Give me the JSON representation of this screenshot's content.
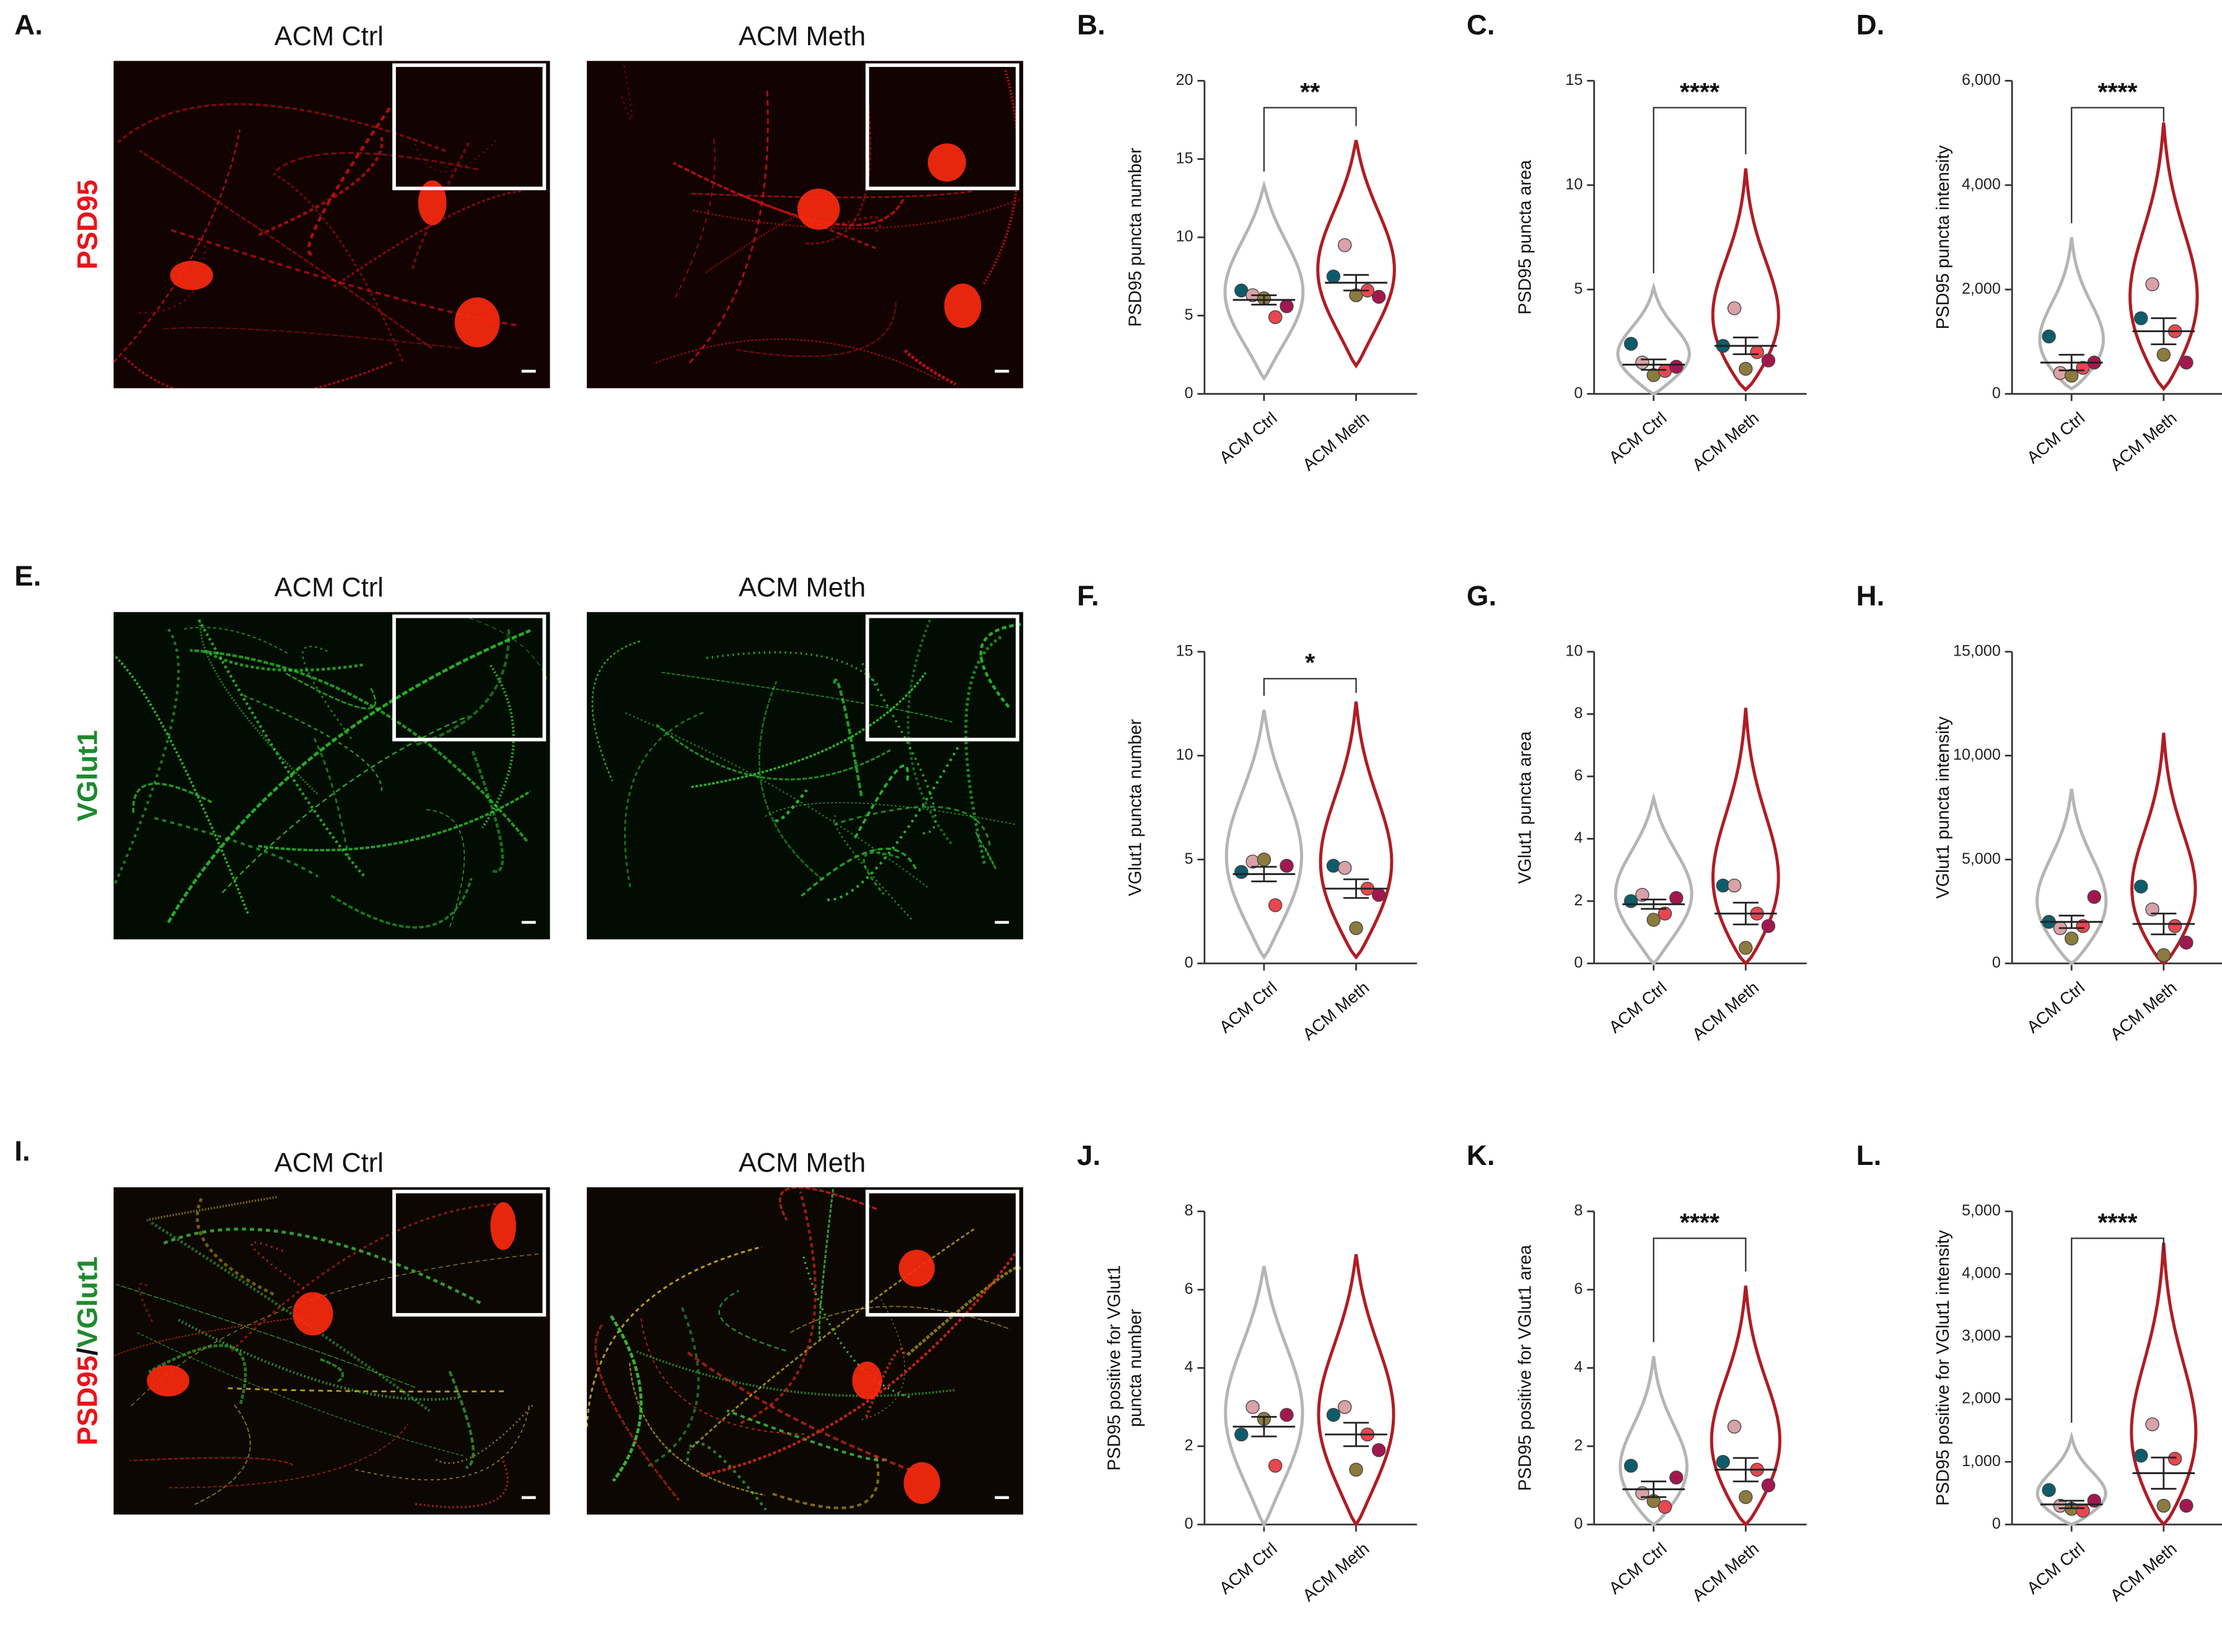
{
  "figure_panels": [
    {
      "letter": "A.",
      "stain": [
        "PSD95"
      ],
      "stain_colors": [
        "#e8141c"
      ],
      "channel": "red",
      "images": [
        "ACM Ctrl",
        "ACM Meth"
      ]
    },
    {
      "letter": "E.",
      "stain": [
        "VGlut1"
      ],
      "stain_colors": [
        "#1e8a2e"
      ],
      "channel": "green",
      "images": [
        "ACM Ctrl",
        "ACM Meth"
      ]
    },
    {
      "letter": "I.",
      "stain": [
        "PSD95",
        "/",
        "VGlut1"
      ],
      "stain_colors": [
        "#e8141c",
        "#111111",
        "#1e8a2e"
      ],
      "channel": "merge",
      "images": [
        "ACM Ctrl",
        "ACM Meth"
      ]
    }
  ],
  "chart_data": [
    {
      "type": "violin",
      "letter": "B.",
      "ylabel": "PSD95 puncta number",
      "categories": [
        "ACM Ctrl",
        "ACM Meth"
      ],
      "ylim": [
        0,
        20
      ],
      "yticks": [
        0,
        5,
        10,
        15,
        20
      ],
      "significance": "**",
      "point_colors": [
        "#0d5c6b",
        "#d9a1a8",
        "#8c7b3e",
        "#e8474f",
        "#a3174f"
      ],
      "series": [
        {
          "name": "ACM Ctrl",
          "color": "#b5b5b5",
          "min": 1,
          "max": 13.3,
          "mean": 6.0,
          "sem": 0.3,
          "points": [
            6.6,
            6.3,
            6.1,
            4.9,
            5.6
          ]
        },
        {
          "name": "ACM Meth",
          "color": "#b01c24",
          "min": 1.8,
          "max": 16.2,
          "mean": 7.1,
          "sem": 0.5,
          "points": [
            7.5,
            9.5,
            6.3,
            6.6,
            6.2
          ]
        }
      ]
    },
    {
      "type": "violin",
      "letter": "C.",
      "ylabel": "PSD95 puncta area",
      "categories": [
        "ACM Ctrl",
        "ACM Meth"
      ],
      "ylim": [
        0,
        15
      ],
      "yticks": [
        0,
        5,
        10,
        15
      ],
      "significance": "****",
      "point_colors": [
        "#0d5c6b",
        "#d9a1a8",
        "#8c7b3e",
        "#e8474f",
        "#a3174f"
      ],
      "series": [
        {
          "name": "ACM Ctrl",
          "color": "#b5b5b5",
          "min": 0,
          "max": 5.1,
          "mean": 1.4,
          "sem": 0.25,
          "points": [
            2.4,
            1.5,
            0.9,
            1.1,
            1.3
          ]
        },
        {
          "name": "ACM Meth",
          "color": "#b01c24",
          "min": 0.2,
          "max": 10.8,
          "mean": 2.3,
          "sem": 0.4,
          "points": [
            2.3,
            4.1,
            1.2,
            2.0,
            1.6
          ]
        }
      ]
    },
    {
      "type": "violin",
      "letter": "D.",
      "ylabel": "PSD95 puncta intensity",
      "categories": [
        "ACM Ctrl",
        "ACM Meth"
      ],
      "ylim": [
        0,
        6000
      ],
      "yticks": [
        0,
        {
          "value": 2000,
          "label": "2,000"
        },
        {
          "value": 4000,
          "label": "4,000"
        },
        {
          "value": 6000,
          "label": "6,000"
        }
      ],
      "significance": "****",
      "point_colors": [
        "#0d5c6b",
        "#d9a1a8",
        "#8c7b3e",
        "#e8474f",
        "#a3174f"
      ],
      "series": [
        {
          "name": "ACM Ctrl",
          "color": "#b5b5b5",
          "min": 100,
          "max": 3000,
          "mean": 600,
          "sem": 150,
          "points": [
            1100,
            400,
            350,
            500,
            600
          ]
        },
        {
          "name": "ACM Meth",
          "color": "#b01c24",
          "min": 100,
          "max": 5200,
          "mean": 1200,
          "sem": 250,
          "points": [
            1450,
            2100,
            750,
            1200,
            600
          ]
        }
      ]
    },
    {
      "type": "violin",
      "letter": "F.",
      "ylabel": "VGlut1 puncta number",
      "categories": [
        "ACM Ctrl",
        "ACM Meth"
      ],
      "ylim": [
        0,
        15
      ],
      "yticks": [
        0,
        5,
        10,
        15
      ],
      "significance": "*",
      "point_colors": [
        "#0d5c6b",
        "#d9a1a8",
        "#8c7b3e",
        "#e8474f",
        "#a3174f"
      ],
      "series": [
        {
          "name": "ACM Ctrl",
          "color": "#b5b5b5",
          "min": 0.3,
          "max": 12.2,
          "mean": 4.3,
          "sem": 0.35,
          "points": [
            4.4,
            4.9,
            5.0,
            2.8,
            4.7
          ]
        },
        {
          "name": "ACM Meth",
          "color": "#b01c24",
          "min": 0.3,
          "max": 12.6,
          "mean": 3.6,
          "sem": 0.45,
          "points": [
            4.7,
            4.6,
            1.7,
            3.6,
            3.3
          ]
        }
      ]
    },
    {
      "type": "violin",
      "letter": "G.",
      "ylabel": "VGlut1 puncta area",
      "categories": [
        "ACM Ctrl",
        "ACM Meth"
      ],
      "ylim": [
        0,
        10
      ],
      "yticks": [
        0,
        2,
        4,
        6,
        8,
        10
      ],
      "point_colors": [
        "#0d5c6b",
        "#d9a1a8",
        "#8c7b3e",
        "#e8474f",
        "#a3174f"
      ],
      "series": [
        {
          "name": "ACM Ctrl",
          "color": "#b5b5b5",
          "min": 0,
          "max": 5.3,
          "mean": 1.9,
          "sem": 0.15,
          "points": [
            2.0,
            2.2,
            1.4,
            1.6,
            2.1
          ]
        },
        {
          "name": "ACM Meth",
          "color": "#b01c24",
          "min": 0,
          "max": 8.2,
          "mean": 1.6,
          "sem": 0.35,
          "points": [
            2.5,
            2.5,
            0.5,
            1.6,
            1.2
          ]
        }
      ]
    },
    {
      "type": "violin",
      "letter": "H.",
      "ylabel": "VGlut1 puncta intensity",
      "categories": [
        "ACM Ctrl",
        "ACM Meth"
      ],
      "ylim": [
        0,
        15000
      ],
      "yticks": [
        0,
        {
          "value": 5000,
          "label": "5,000"
        },
        {
          "value": 10000,
          "label": "10,000"
        },
        {
          "value": 15000,
          "label": "15,000"
        }
      ],
      "point_colors": [
        "#0d5c6b",
        "#d9a1a8",
        "#8c7b3e",
        "#e8474f",
        "#a3174f"
      ],
      "series": [
        {
          "name": "ACM Ctrl",
          "color": "#b5b5b5",
          "min": 0,
          "max": 8400,
          "mean": 2000,
          "sem": 300,
          "points": [
            2000,
            1700,
            1200,
            1800,
            3200
          ]
        },
        {
          "name": "ACM Meth",
          "color": "#b01c24",
          "min": 0,
          "max": 11100,
          "mean": 1900,
          "sem": 500,
          "points": [
            3700,
            2600,
            400,
            1800,
            1000
          ]
        }
      ]
    },
    {
      "type": "violin",
      "letter": "J.",
      "ylabel": [
        "PSD95 positive for VGlut1",
        "puncta number"
      ],
      "categories": [
        "ACM Ctrl",
        "ACM Meth"
      ],
      "ylim": [
        0,
        8
      ],
      "yticks": [
        0,
        2,
        4,
        6,
        8
      ],
      "point_colors": [
        "#0d5c6b",
        "#d9a1a8",
        "#8c7b3e",
        "#e8474f",
        "#a3174f"
      ],
      "series": [
        {
          "name": "ACM Ctrl",
          "color": "#b5b5b5",
          "min": 0,
          "max": 6.6,
          "mean": 2.5,
          "sem": 0.25,
          "points": [
            2.3,
            3.0,
            2.7,
            1.5,
            2.8
          ]
        },
        {
          "name": "ACM Meth",
          "color": "#b01c24",
          "min": 0,
          "max": 6.9,
          "mean": 2.3,
          "sem": 0.3,
          "points": [
            2.8,
            3.0,
            1.4,
            2.3,
            1.9
          ]
        }
      ]
    },
    {
      "type": "violin",
      "letter": "K.",
      "ylabel": "PSD95 positive for VGlut1 area",
      "categories": [
        "ACM Ctrl",
        "ACM Meth"
      ],
      "ylim": [
        0,
        8
      ],
      "yticks": [
        0,
        2,
        4,
        6,
        8
      ],
      "significance": "****",
      "point_colors": [
        "#0d5c6b",
        "#d9a1a8",
        "#8c7b3e",
        "#e8474f",
        "#a3174f"
      ],
      "series": [
        {
          "name": "ACM Ctrl",
          "color": "#b5b5b5",
          "min": 0,
          "max": 4.3,
          "mean": 0.9,
          "sem": 0.2,
          "points": [
            1.5,
            0.8,
            0.6,
            0.45,
            1.2
          ]
        },
        {
          "name": "ACM Meth",
          "color": "#b01c24",
          "min": 0,
          "max": 6.1,
          "mean": 1.4,
          "sem": 0.3,
          "points": [
            1.6,
            2.5,
            0.7,
            1.4,
            1.0
          ]
        }
      ]
    },
    {
      "type": "violin",
      "letter": "L.",
      "ylabel": "PSD95 positive for VGlut1 intensity",
      "categories": [
        "ACM Ctrl",
        "ACM Meth"
      ],
      "ylim": [
        0,
        5000
      ],
      "yticks": [
        0,
        {
          "value": 1000,
          "label": "1,000"
        },
        {
          "value": 2000,
          "label": "2,000"
        },
        {
          "value": 3000,
          "label": "3,000"
        },
        {
          "value": 4000,
          "label": "4,000"
        },
        {
          "value": 5000,
          "label": "5,000"
        }
      ],
      "significance": "****",
      "point_colors": [
        "#0d5c6b",
        "#d9a1a8",
        "#8c7b3e",
        "#e8474f",
        "#a3174f"
      ],
      "series": [
        {
          "name": "ACM Ctrl",
          "color": "#b5b5b5",
          "min": 0,
          "max": 1400,
          "mean": 320,
          "sem": 60,
          "points": [
            550,
            300,
            250,
            220,
            380
          ]
        },
        {
          "name": "ACM Meth",
          "color": "#b01c24",
          "min": 0,
          "max": 4500,
          "mean": 820,
          "sem": 250,
          "points": [
            1100,
            1600,
            300,
            1050,
            300
          ]
        }
      ]
    }
  ]
}
